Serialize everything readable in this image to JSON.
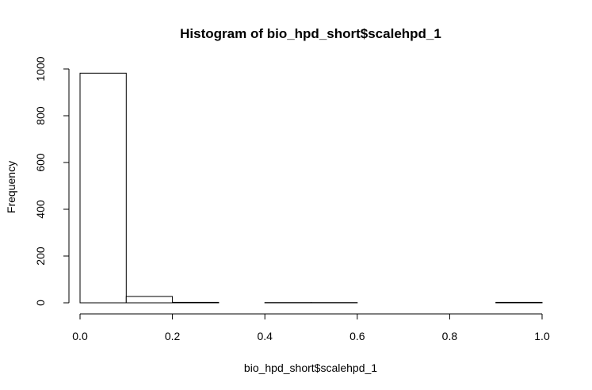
{
  "chart_data": {
    "type": "bar",
    "title": "Histogram of bio_hpd_short$scalehpd_1",
    "xlabel": "bio_hpd_short$scalehpd_1",
    "ylabel": "Frequency",
    "xlim": [
      0,
      1
    ],
    "ylim": [
      0,
      1000
    ],
    "x_ticks": [
      "0.0",
      "0.2",
      "0.4",
      "0.6",
      "0.8",
      "1.0"
    ],
    "y_ticks": [
      "0",
      "200",
      "400",
      "600",
      "800",
      "1000"
    ],
    "bins": [
      {
        "start": 0.0,
        "end": 0.1,
        "count": 982
      },
      {
        "start": 0.1,
        "end": 0.2,
        "count": 27
      },
      {
        "start": 0.2,
        "end": 0.3,
        "count": 2
      },
      {
        "start": 0.3,
        "end": 0.4,
        "count": 0
      },
      {
        "start": 0.4,
        "end": 0.5,
        "count": 1
      },
      {
        "start": 0.5,
        "end": 0.6,
        "count": 1
      },
      {
        "start": 0.6,
        "end": 0.7,
        "count": 0
      },
      {
        "start": 0.7,
        "end": 0.8,
        "count": 0
      },
      {
        "start": 0.8,
        "end": 0.9,
        "count": 0
      },
      {
        "start": 0.9,
        "end": 1.0,
        "count": 2
      }
    ],
    "grid": false,
    "legend": "none",
    "bar_fill": "#ffffff",
    "bar_stroke": "#000000"
  }
}
